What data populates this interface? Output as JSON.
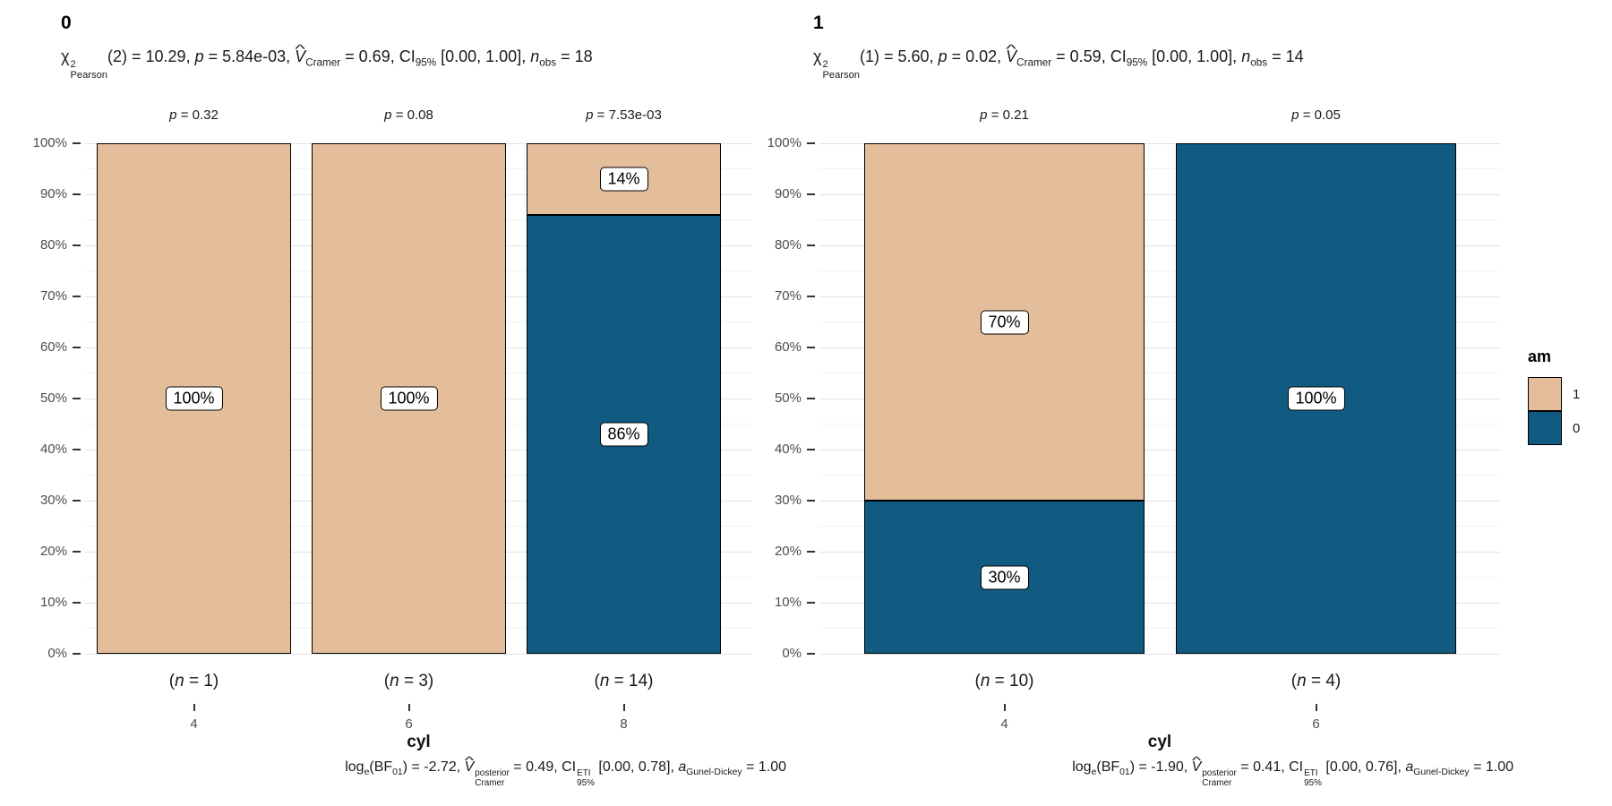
{
  "legend": {
    "title": "am",
    "entries": [
      {
        "label": "1",
        "color": "#E4BE9B"
      },
      {
        "label": "0",
        "color": "#115A82"
      }
    ]
  },
  "colors": {
    "fill_am_1": "#E4BE9B",
    "fill_am_0": "#115A82",
    "bar_border": "#000000",
    "grid_major": "#E3E3E3",
    "grid_minor": "#F2F2F2",
    "axis_text": "#4D4D4D",
    "text_dark": "#1A1A1A",
    "background": "#FFFFFF"
  },
  "chart_data": [
    {
      "type": "bar",
      "stacked": true,
      "percent": true,
      "title": "0",
      "subtitle": {
        "text": "χ²Pearson(2) = 10.29, p = 5.84e-03, V̂Cramer = 0.69, CI95% [0.00, 1.00], nobs = 18",
        "parts": [
          {
            "t": "χ",
            "stack": {
              "sup": "2",
              "sub": "Pearson"
            }
          },
          {
            "t": "(2) = 10.29, "
          },
          {
            "t": "p",
            "i": true
          },
          {
            "t": " = 5.84e-03, "
          },
          {
            "t": "V",
            "i": true,
            "hat": true,
            "sub": "Cramer"
          },
          {
            "t": " = 0.69, CI",
            "sub": "95%"
          },
          {
            "t": " [0.00, 1.00], "
          },
          {
            "t": "n",
            "i": true,
            "sub": "obs"
          },
          {
            "t": " = 18"
          }
        ]
      },
      "caption": {
        "text": "loge(BF01) = -2.72, V̂posterior Cramer = 0.49, CI ETI 95% [0.00, 0.78], aGunel-Dickey = 1.00",
        "parts": [
          {
            "t": "log",
            "sub": "e"
          },
          {
            "t": "(BF",
            "sub": "01"
          },
          {
            "t": ") = -2.72, "
          },
          {
            "t": "V",
            "i": true,
            "hat": true,
            "stack": {
              "sup": "posterior",
              "sub": "Cramer"
            }
          },
          {
            "t": " = 0.49, CI",
            "stack": {
              "sup": "ETI",
              "sub": "95%"
            }
          },
          {
            "t": " [0.00, 0.78], "
          },
          {
            "t": "a",
            "i": true,
            "sub": "Gunel-Dickey"
          },
          {
            "t": " = 1.00"
          }
        ]
      },
      "xlabel": "cyl",
      "ylabel": "",
      "ylim": [
        0,
        100
      ],
      "y_ticks": [
        "0%",
        "10%",
        "20%",
        "30%",
        "40%",
        "50%",
        "60%",
        "70%",
        "80%",
        "90%",
        "100%"
      ],
      "categories": [
        "4",
        "6",
        "8"
      ],
      "series": [
        {
          "name": "1",
          "color": "#E4BE9B",
          "values": [
            100,
            100,
            14
          ]
        },
        {
          "name": "0",
          "color": "#115A82",
          "values": [
            0,
            0,
            86
          ]
        }
      ],
      "bar_p_labels": [
        "p = 0.32",
        "p = 0.08",
        "p = 7.53e-03"
      ],
      "bar_n_labels": [
        "(n = 1)",
        "(n = 3)",
        "(n = 14)"
      ]
    },
    {
      "type": "bar",
      "stacked": true,
      "percent": true,
      "title": "1",
      "subtitle": {
        "text": "χ²Pearson(1) = 5.60, p = 0.02, V̂Cramer = 0.59, CI95% [0.00, 1.00], nobs = 14",
        "parts": [
          {
            "t": "χ",
            "stack": {
              "sup": "2",
              "sub": "Pearson"
            }
          },
          {
            "t": "(1) = 5.60, "
          },
          {
            "t": "p",
            "i": true
          },
          {
            "t": " = 0.02, "
          },
          {
            "t": "V",
            "i": true,
            "hat": true,
            "sub": "Cramer"
          },
          {
            "t": " = 0.59, CI",
            "sub": "95%"
          },
          {
            "t": " [0.00, 1.00], "
          },
          {
            "t": "n",
            "i": true,
            "sub": "obs"
          },
          {
            "t": " = 14"
          }
        ]
      },
      "caption": {
        "text": "loge(BF01) = -1.90, V̂posterior Cramer = 0.41, CI ETI 95% [0.00, 0.76], aGunel-Dickey = 1.00",
        "parts": [
          {
            "t": "log",
            "sub": "e"
          },
          {
            "t": "(BF",
            "sub": "01"
          },
          {
            "t": ") = -1.90, "
          },
          {
            "t": "V",
            "i": true,
            "hat": true,
            "stack": {
              "sup": "posterior",
              "sub": "Cramer"
            }
          },
          {
            "t": " = 0.41, CI",
            "stack": {
              "sup": "ETI",
              "sub": "95%"
            }
          },
          {
            "t": " [0.00, 0.76], "
          },
          {
            "t": "a",
            "i": true,
            "sub": "Gunel-Dickey"
          },
          {
            "t": " = 1.00"
          }
        ]
      },
      "xlabel": "cyl",
      "ylabel": "",
      "ylim": [
        0,
        100
      ],
      "y_ticks": [
        "0%",
        "10%",
        "20%",
        "30%",
        "40%",
        "50%",
        "60%",
        "70%",
        "80%",
        "90%",
        "100%"
      ],
      "categories": [
        "4",
        "6"
      ],
      "series": [
        {
          "name": "1",
          "color": "#E4BE9B",
          "values": [
            70,
            0
          ]
        },
        {
          "name": "0",
          "color": "#115A82",
          "values": [
            30,
            100
          ]
        }
      ],
      "bar_p_labels": [
        "p = 0.21",
        "p = 0.05"
      ],
      "bar_n_labels": [
        "(n = 10)",
        "(n = 4)"
      ]
    }
  ]
}
